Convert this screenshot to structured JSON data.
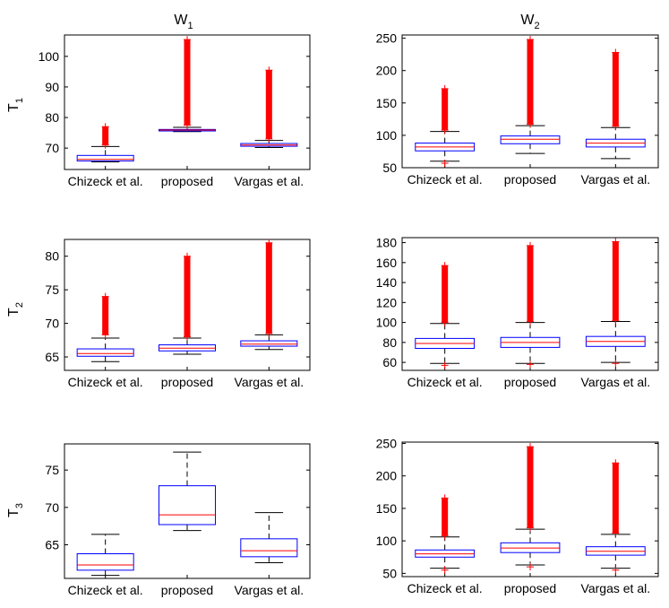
{
  "column_titles": [
    {
      "main": "W",
      "sub": "1"
    },
    {
      "main": "W",
      "sub": "2"
    }
  ],
  "row_labels": [
    {
      "main": "T",
      "sub": "1"
    },
    {
      "main": "T",
      "sub": "2"
    },
    {
      "main": "T",
      "sub": "3"
    }
  ],
  "colors": {
    "box": "#0000ff",
    "median": "#ff0000",
    "outlier": "#ff0000",
    "whisker": "#000000",
    "axes": "#000000"
  },
  "chart_data": [
    {
      "type": "boxplot",
      "id": "T1-W1",
      "categories": [
        "Chizeck et al.",
        "proposed",
        "Vargas et al."
      ],
      "ylim": [
        63,
        107
      ],
      "yticks": [
        70,
        80,
        90,
        100
      ],
      "boxes": [
        {
          "q1": 65.8,
          "median": 66.3,
          "q3": 67.6,
          "whisker_low": 65.5,
          "whisker_high": 70.5,
          "outliers_low": [],
          "outlier_high_range": [
            71,
            77
          ]
        },
        {
          "q1": 75.6,
          "median": 75.9,
          "q3": 76.1,
          "whisker_low": 75.4,
          "whisker_high": 76.8,
          "outliers_low": [],
          "outlier_high_range": [
            77.5,
            105.5
          ]
        },
        {
          "q1": 70.6,
          "median": 71.0,
          "q3": 71.5,
          "whisker_low": 70.2,
          "whisker_high": 72.5,
          "outliers_low": [],
          "outlier_high_range": [
            73,
            95.5
          ]
        }
      ],
      "grid": false
    },
    {
      "type": "boxplot",
      "id": "T1-W2",
      "categories": [
        "Chizeck et al.",
        "proposed",
        "Vargas et al."
      ],
      "ylim": [
        50,
        255
      ],
      "yticks": [
        50,
        100,
        150,
        200,
        250
      ],
      "boxes": [
        {
          "q1": 76,
          "median": 82,
          "q3": 88,
          "whisker_low": 60,
          "whisker_high": 106,
          "outliers_low": [
            57
          ],
          "outlier_high_range": [
            108,
            172
          ]
        },
        {
          "q1": 87,
          "median": 94,
          "q3": 99,
          "whisker_low": 72,
          "whisker_high": 115,
          "outliers_low": [],
          "outlier_high_range": [
            117,
            248
          ]
        },
        {
          "q1": 82,
          "median": 88,
          "q3": 94,
          "whisker_low": 64,
          "whisker_high": 112,
          "outliers_low": [],
          "outlier_high_range": [
            114,
            228
          ]
        }
      ],
      "grid": false
    },
    {
      "type": "boxplot",
      "id": "T2-W1",
      "categories": [
        "Chizeck et al.",
        "proposed",
        "Vargas et al."
      ],
      "ylim": [
        63,
        82.5
      ],
      "yticks": [
        65,
        70,
        75,
        80
      ],
      "boxes": [
        {
          "q1": 65.1,
          "median": 65.5,
          "q3": 66.2,
          "whisker_low": 64.3,
          "whisker_high": 67.8,
          "outliers_low": [],
          "outlier_high_range": [
            68.3,
            74
          ]
        },
        {
          "q1": 65.9,
          "median": 66.3,
          "q3": 66.8,
          "whisker_low": 65.4,
          "whisker_high": 67.8,
          "outliers_low": [],
          "outlier_high_range": [
            68,
            80
          ]
        },
        {
          "q1": 66.6,
          "median": 66.9,
          "q3": 67.4,
          "whisker_low": 66.1,
          "whisker_high": 68.3,
          "outliers_low": [],
          "outlier_high_range": [
            68.5,
            82
          ]
        }
      ],
      "grid": false
    },
    {
      "type": "boxplot",
      "id": "T2-W2",
      "categories": [
        "Chizeck et al.",
        "proposed",
        "Vargas et al."
      ],
      "ylim": [
        52,
        185
      ],
      "yticks": [
        60,
        80,
        100,
        120,
        140,
        160,
        180
      ],
      "boxes": [
        {
          "q1": 74,
          "median": 79,
          "q3": 84,
          "whisker_low": 59,
          "whisker_high": 99,
          "outliers_low": [
            57
          ],
          "outlier_high_range": [
            100,
            157
          ]
        },
        {
          "q1": 75,
          "median": 80,
          "q3": 85,
          "whisker_low": 59,
          "whisker_high": 100,
          "outliers_low": [
            58
          ],
          "outlier_high_range": [
            101,
            177
          ]
        },
        {
          "q1": 76,
          "median": 81,
          "q3": 86,
          "whisker_low": 60,
          "whisker_high": 101,
          "outliers_low": [
            59
          ],
          "outlier_high_range": [
            102,
            181
          ]
        }
      ],
      "grid": false
    },
    {
      "type": "boxplot",
      "id": "T3-W1",
      "categories": [
        "Chizeck et al.",
        "proposed",
        "Vargas et al."
      ],
      "ylim": [
        60.5,
        78.5
      ],
      "yticks": [
        65,
        70,
        75
      ],
      "boxes": [
        {
          "q1": 61.6,
          "median": 62.3,
          "q3": 63.8,
          "whisker_low": 60.9,
          "whisker_high": 66.4,
          "outliers_low": [],
          "outlier_high_range": null
        },
        {
          "q1": 67.7,
          "median": 69.0,
          "q3": 72.9,
          "whisker_low": 66.9,
          "whisker_high": 77.4,
          "outliers_low": [],
          "outlier_high_range": null
        },
        {
          "q1": 63.4,
          "median": 64.2,
          "q3": 65.8,
          "whisker_low": 62.6,
          "whisker_high": 69.3,
          "outliers_low": [],
          "outlier_high_range": null
        }
      ],
      "grid": false
    },
    {
      "type": "boxplot",
      "id": "T3-W2",
      "categories": [
        "Chizeck et al.",
        "proposed",
        "Vargas et al."
      ],
      "ylim": [
        45,
        252
      ],
      "yticks": [
        50,
        100,
        150,
        200,
        250
      ],
      "boxes": [
        {
          "q1": 75,
          "median": 80,
          "q3": 86,
          "whisker_low": 58,
          "whisker_high": 106,
          "outliers_low": [
            55
          ],
          "outlier_high_range": [
            108,
            166
          ]
        },
        {
          "q1": 82,
          "median": 89,
          "q3": 97,
          "whisker_low": 63,
          "whisker_high": 118,
          "outliers_low": [
            60
          ],
          "outlier_high_range": [
            120,
            245
          ]
        },
        {
          "q1": 78,
          "median": 84,
          "q3": 91,
          "whisker_low": 58,
          "whisker_high": 110,
          "outliers_low": [
            55
          ],
          "outlier_high_range": [
            112,
            220
          ]
        }
      ],
      "grid": false
    }
  ]
}
